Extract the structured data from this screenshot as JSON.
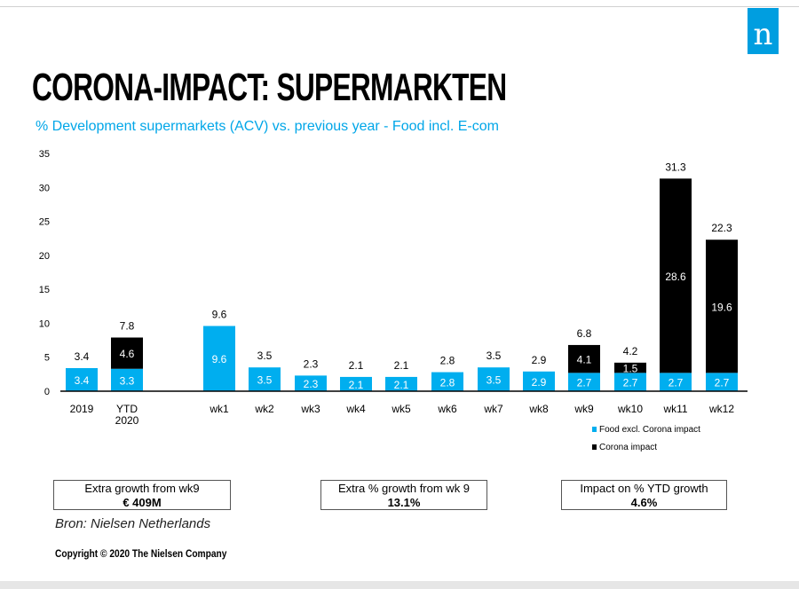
{
  "header": {
    "title": "CORONA-IMPACT: SUPERMARKTEN",
    "subtitle": "% Development supermarkets (ACV) vs. previous year - Food incl. E-com",
    "logo": "n"
  },
  "chart_data": {
    "type": "bar",
    "stacked": true,
    "categories": [
      "2019",
      "YTD 2020",
      "wk1",
      "wk2",
      "wk3",
      "wk4",
      "wk5",
      "wk6",
      "wk7",
      "wk8",
      "wk9",
      "wk10",
      "wk11",
      "wk12"
    ],
    "series": [
      {
        "name": "Food excl. Corona impact",
        "color": "#00aeef",
        "values": [
          3.4,
          3.3,
          9.6,
          3.5,
          2.3,
          2.1,
          2.1,
          2.8,
          3.5,
          2.9,
          2.7,
          2.7,
          2.7,
          2.7
        ]
      },
      {
        "name": "Corona impact",
        "color": "#000000",
        "values": [
          null,
          4.6,
          null,
          null,
          null,
          null,
          null,
          null,
          null,
          null,
          4.1,
          1.5,
          28.6,
          19.6
        ]
      }
    ],
    "totals": [
      3.4,
      7.8,
      9.6,
      3.5,
      2.3,
      2.1,
      2.1,
      2.8,
      3.5,
      2.9,
      6.8,
      4.2,
      31.3,
      22.3
    ],
    "yticks": [
      "0",
      "5",
      "10",
      "15",
      "20",
      "25",
      "30",
      "35"
    ],
    "ylim": [
      0,
      35
    ],
    "grid": false,
    "legend": "bottom-right"
  },
  "kpis": [
    {
      "label": "Extra growth from wk9",
      "value": "€ 409M"
    },
    {
      "label": "Extra % growth from wk 9",
      "value": "13.1%"
    },
    {
      "label": "Impact on % YTD growth",
      "value": "4.6%"
    }
  ],
  "footer": {
    "source": "Bron: Nielsen Netherlands",
    "copyright": "Copyright © 2020 The Nielsen Company"
  }
}
